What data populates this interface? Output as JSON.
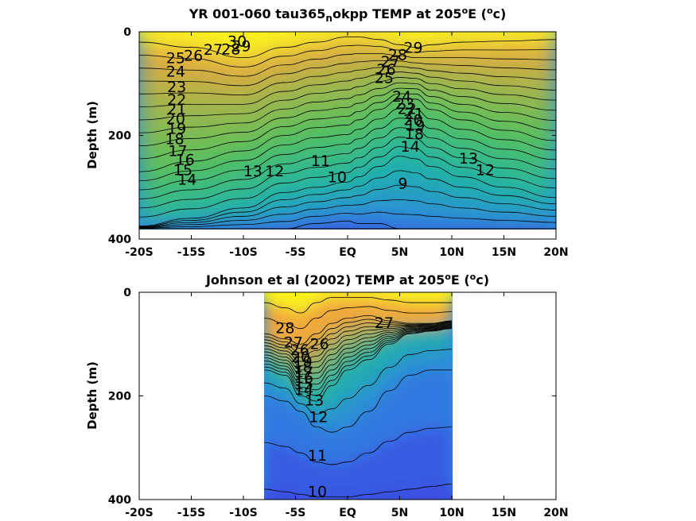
{
  "colors": {
    "warm": "#f9f21f",
    "orange": "#f2a93a",
    "green": "#58c05a",
    "teal": "#1fb5a5",
    "blue": "#2d86e0",
    "deep": "#3b4de2",
    "contour": "#000000",
    "background": "#ffffff"
  },
  "chart_data": [
    {
      "type": "heatmap",
      "title_parts": [
        "YR 001-060 tau365",
        "n",
        "okpp TEMP at 205",
        "o",
        "E (",
        "o",
        "c)"
      ],
      "ylabel": "Depth (m)",
      "xlim": [
        -20,
        20
      ],
      "ylim": [
        400,
        0
      ],
      "xticks": [
        -20,
        -15,
        -10,
        -5,
        0,
        5,
        10,
        15,
        20
      ],
      "xtick_labels": [
        "-20S",
        "-15S",
        "-10S",
        "-5S",
        "EQ",
        "5N",
        "10N",
        "15N",
        "20N"
      ],
      "yticks": [
        0,
        200,
        400
      ],
      "ytick_labels": [
        "0",
        "200",
        "400"
      ],
      "data_extent": {
        "lat": [
          -20,
          20
        ],
        "depth": [
          0,
          380
        ]
      },
      "isotherm_depths": {
        "lat": [
          -20,
          -15,
          -10,
          -6,
          -3,
          0,
          1,
          3,
          5,
          6.5,
          8,
          11,
          15,
          20
        ],
        "t30": [
          20,
          30,
          50,
          30,
          20,
          10,
          10,
          15,
          25,
          30,
          25,
          20,
          18,
          15
        ],
        "t20": [
          270,
          250,
          230,
          200,
          185,
          180,
          170,
          150,
          130,
          130,
          150,
          170,
          190,
          210
        ],
        "t14": [
          375,
          360,
          340,
          310,
          300,
          290,
          280,
          260,
          240,
          245,
          260,
          280,
          300,
          320
        ],
        "t9": [
          380,
          380,
          380,
          380,
          370,
          365,
          370,
          370,
          380,
          380,
          380,
          380,
          380,
          380
        ]
      },
      "contour_labels": [
        {
          "text": "30",
          "lat": -10.6,
          "depth": 18
        },
        {
          "text": "29",
          "lat": -10.2,
          "depth": 27
        },
        {
          "text": "28",
          "lat": -11.2,
          "depth": 33
        },
        {
          "text": "27",
          "lat": -12.9,
          "depth": 34
        },
        {
          "text": "26",
          "lat": -14.8,
          "depth": 45
        },
        {
          "text": "25",
          "lat": -16.5,
          "depth": 50
        },
        {
          "text": "24",
          "lat": -16.5,
          "depth": 76
        },
        {
          "text": "23",
          "lat": -16.4,
          "depth": 106
        },
        {
          "text": "22",
          "lat": -16.4,
          "depth": 130
        },
        {
          "text": "21",
          "lat": -16.4,
          "depth": 149
        },
        {
          "text": "20",
          "lat": -16.5,
          "depth": 167
        },
        {
          "text": "19",
          "lat": -16.4,
          "depth": 186
        },
        {
          "text": "18",
          "lat": -16.6,
          "depth": 206
        },
        {
          "text": "17",
          "lat": -16.3,
          "depth": 229
        },
        {
          "text": "16",
          "lat": -15.6,
          "depth": 246
        },
        {
          "text": "15",
          "lat": -15.8,
          "depth": 266
        },
        {
          "text": "14",
          "lat": -15.4,
          "depth": 284
        },
        {
          "text": "13",
          "lat": -9.1,
          "depth": 268
        },
        {
          "text": "12",
          "lat": -7.0,
          "depth": 268
        },
        {
          "text": "11",
          "lat": -2.6,
          "depth": 248
        },
        {
          "text": "10",
          "lat": -1.0,
          "depth": 280
        },
        {
          "text": "9",
          "lat": 5.3,
          "depth": 292
        },
        {
          "text": "29",
          "lat": 6.3,
          "depth": 30
        },
        {
          "text": "28",
          "lat": 4.8,
          "depth": 44
        },
        {
          "text": "27",
          "lat": 4.1,
          "depth": 57
        },
        {
          "text": "26",
          "lat": 3.7,
          "depth": 72
        },
        {
          "text": "25",
          "lat": 3.5,
          "depth": 88
        },
        {
          "text": "24",
          "lat": 5.2,
          "depth": 124
        },
        {
          "text": "23",
          "lat": 5.5,
          "depth": 138
        },
        {
          "text": "22",
          "lat": 5.7,
          "depth": 148
        },
        {
          "text": "21",
          "lat": 6.4,
          "depth": 157
        },
        {
          "text": "20",
          "lat": 6.3,
          "depth": 169
        },
        {
          "text": "19",
          "lat": 6.5,
          "depth": 180
        },
        {
          "text": "18",
          "lat": 6.4,
          "depth": 196
        },
        {
          "text": "14",
          "lat": 6.0,
          "depth": 221
        },
        {
          "text": "13",
          "lat": 11.6,
          "depth": 244
        },
        {
          "text": "12",
          "lat": 13.2,
          "depth": 266
        }
      ]
    },
    {
      "type": "heatmap",
      "title_parts": [
        "Johnson et al (2002) TEMP at 205",
        "o",
        "E (",
        "o",
        "c)"
      ],
      "ylabel": "Depth (m)",
      "xlim": [
        -20,
        20
      ],
      "ylim": [
        400,
        0
      ],
      "xticks": [
        -20,
        -15,
        -10,
        -5,
        0,
        5,
        10,
        15,
        20
      ],
      "xtick_labels": [
        "-20S",
        "-15S",
        "-10S",
        "-5S",
        "EQ",
        "5N",
        "10N",
        "15N",
        "20N"
      ],
      "yticks": [
        0,
        200,
        400
      ],
      "ytick_labels": [
        "0",
        "200",
        "400"
      ],
      "data_extent": {
        "lat": [
          -8,
          10
        ],
        "depth": [
          0,
          400
        ]
      },
      "isotherm_depths": {
        "lat": [
          -8,
          -6,
          -4.5,
          -3,
          -1.5,
          0,
          2,
          4,
          6,
          8,
          10
        ],
        "t28": [
          20,
          30,
          40,
          20,
          10,
          10,
          10,
          15,
          20,
          20,
          20
        ],
        "t26": [
          80,
          90,
          100,
          80,
          60,
          50,
          45,
          55,
          60,
          60,
          55
        ],
        "t14": [
          150,
          160,
          200,
          210,
          180,
          150,
          130,
          100,
          80,
          75,
          70
        ],
        "t12": [
          200,
          210,
          230,
          260,
          270,
          260,
          230,
          190,
          160,
          150,
          150
        ],
        "t10": [
          380,
          385,
          390,
          395,
          395,
          395,
          390,
          385,
          380,
          375,
          370
        ]
      },
      "contour_labels": [
        {
          "text": "28",
          "lat": -6.0,
          "depth": 68
        },
        {
          "text": "27",
          "lat": -5.2,
          "depth": 96
        },
        {
          "text": "26",
          "lat": -2.7,
          "depth": 99
        },
        {
          "text": "26",
          "lat": -4.6,
          "depth": 110
        },
        {
          "text": "20",
          "lat": -4.5,
          "depth": 124
        },
        {
          "text": "19",
          "lat": -4.3,
          "depth": 133
        },
        {
          "text": "18",
          "lat": -4.3,
          "depth": 143
        },
        {
          "text": "17",
          "lat": -4.2,
          "depth": 153
        },
        {
          "text": "16",
          "lat": -4.2,
          "depth": 164
        },
        {
          "text": "15",
          "lat": -4.2,
          "depth": 176
        },
        {
          "text": "14",
          "lat": -4.2,
          "depth": 187
        },
        {
          "text": "13",
          "lat": -3.2,
          "depth": 208
        },
        {
          "text": "12",
          "lat": -2.8,
          "depth": 240
        },
        {
          "text": "11",
          "lat": -2.9,
          "depth": 314
        },
        {
          "text": "10",
          "lat": -2.9,
          "depth": 384
        },
        {
          "text": "27",
          "lat": 3.5,
          "depth": 58
        }
      ]
    }
  ]
}
